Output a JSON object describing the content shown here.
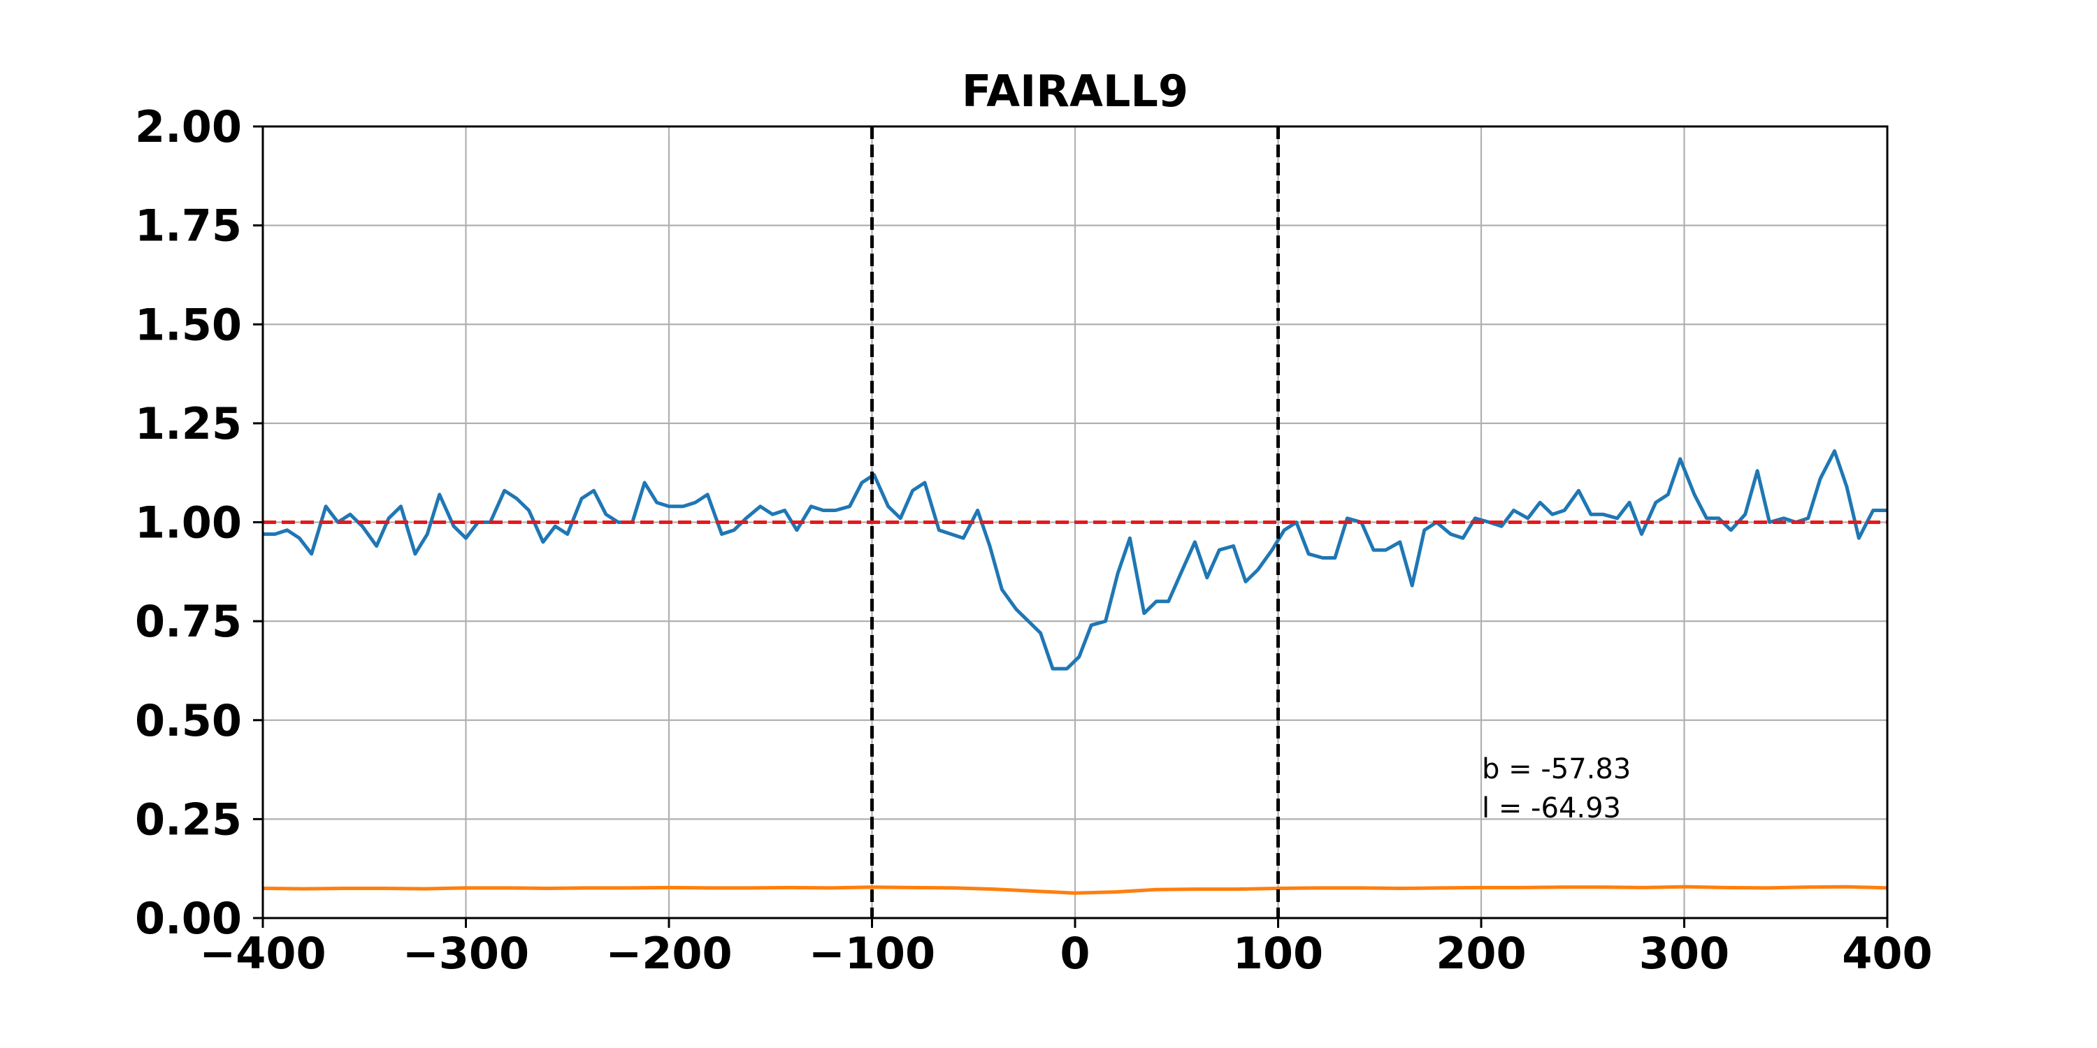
{
  "chart_data": {
    "type": "line",
    "title": "FAIRALL9",
    "xlabel": "",
    "ylabel": "",
    "xlim": [
      -400,
      400
    ],
    "ylim": [
      0,
      2
    ],
    "x_ticks": [
      -400,
      -300,
      -200,
      -100,
      0,
      100,
      200,
      300,
      400
    ],
    "x_tick_labels": [
      "−400",
      "−300",
      "−200",
      "−100",
      "0",
      "100",
      "200",
      "300",
      "400"
    ],
    "y_ticks": [
      0,
      0.25,
      0.5,
      0.75,
      1.0,
      1.25,
      1.5,
      1.75,
      2.0
    ],
    "y_tick_labels": [
      "0.00",
      "0.25",
      "0.50",
      "0.75",
      "1.00",
      "1.25",
      "1.50",
      "1.75",
      "2.00"
    ],
    "grid": true,
    "reference_lines": [
      {
        "orientation": "horizontal",
        "value": 1.0,
        "color": "#e41a1c",
        "style": "dashed"
      },
      {
        "orientation": "vertical",
        "value": -100,
        "color": "#000000",
        "style": "dashed"
      },
      {
        "orientation": "vertical",
        "value": 100,
        "color": "#000000",
        "style": "dashed"
      }
    ],
    "annotations": [
      "b = -57.83",
      "l = -64.93"
    ],
    "series": [
      {
        "color": "#1f77b4",
        "x": [
          -400,
          -394,
          -388,
          -382,
          -376,
          -369,
          -363,
          -357,
          -351,
          -344,
          -338,
          -332,
          -325,
          -319,
          -313,
          -306,
          -300,
          -294,
          -288,
          -281,
          -275,
          -269,
          -262,
          -256,
          -250,
          -243,
          -237,
          -231,
          -225,
          -218,
          -212,
          -206,
          -200,
          -193,
          -187,
          -181,
          -174,
          -168,
          -162,
          -155,
          -149,
          -143,
          -137,
          -130,
          -124,
          -118,
          -111,
          -105,
          -99,
          -92,
          -86,
          -80,
          -74,
          -67,
          -61,
          -55,
          -48,
          -42,
          -36,
          -29,
          -23,
          -17,
          -11,
          -4,
          2,
          8,
          15,
          21,
          27,
          34,
          40,
          46,
          52,
          59,
          65,
          71,
          78,
          84,
          90,
          97,
          103,
          109,
          115,
          122,
          128,
          134,
          141,
          147,
          153,
          160,
          166,
          172,
          178,
          185,
          191,
          197,
          204,
          210,
          216,
          223,
          229,
          235,
          241,
          248,
          254,
          260,
          267,
          273,
          279,
          286,
          292,
          298,
          305,
          311,
          317,
          323,
          330,
          336,
          342,
          349,
          355,
          361,
          367,
          374,
          380,
          386,
          393,
          400
        ],
        "y": [
          0.97,
          0.97,
          0.98,
          0.96,
          0.92,
          1.04,
          1.0,
          1.02,
          0.99,
          0.94,
          1.01,
          1.04,
          0.92,
          0.97,
          1.07,
          0.99,
          0.96,
          1.0,
          1.0,
          1.08,
          1.06,
          1.03,
          0.95,
          0.99,
          0.97,
          1.06,
          1.08,
          1.02,
          1.0,
          1.0,
          1.1,
          1.05,
          1.04,
          1.04,
          1.05,
          1.07,
          0.97,
          0.98,
          1.01,
          1.04,
          1.02,
          1.03,
          0.98,
          1.04,
          1.03,
          1.03,
          1.04,
          1.1,
          1.12,
          1.04,
          1.01,
          1.08,
          1.1,
          0.98,
          0.97,
          0.96,
          1.03,
          0.94,
          0.83,
          0.78,
          0.75,
          0.72,
          0.63,
          0.63,
          0.66,
          0.74,
          0.75,
          0.87,
          0.96,
          0.77,
          0.8,
          0.8,
          0.87,
          0.95,
          0.86,
          0.93,
          0.94,
          0.85,
          0.88,
          0.93,
          0.98,
          1.0,
          0.92,
          0.91,
          0.91,
          1.01,
          1.0,
          0.93,
          0.93,
          0.95,
          0.84,
          0.98,
          1.0,
          0.97,
          0.96,
          1.01,
          1.0,
          0.99,
          1.03,
          1.01,
          1.05,
          1.02,
          1.03,
          1.08,
          1.02,
          1.02,
          1.01,
          1.05,
          0.97,
          1.05,
          1.07,
          1.16,
          1.07,
          1.01,
          1.01,
          0.98,
          1.02,
          1.13,
          1.0,
          1.01,
          1.0,
          1.01,
          1.11,
          1.18,
          1.09,
          0.96,
          1.03,
          1.03
        ]
      },
      {
        "color": "#ff7f0e",
        "x": [
          -400,
          -380,
          -360,
          -340,
          -320,
          -300,
          -280,
          -260,
          -240,
          -220,
          -200,
          -180,
          -160,
          -140,
          -120,
          -100,
          -80,
          -60,
          -40,
          -20,
          0,
          20,
          40,
          60,
          80,
          100,
          120,
          140,
          160,
          180,
          200,
          220,
          240,
          260,
          280,
          300,
          320,
          340,
          360,
          380,
          400
        ],
        "y": [
          0.075,
          0.074,
          0.075,
          0.075,
          0.074,
          0.076,
          0.076,
          0.075,
          0.076,
          0.076,
          0.077,
          0.076,
          0.076,
          0.077,
          0.076,
          0.078,
          0.077,
          0.076,
          0.073,
          0.068,
          0.063,
          0.066,
          0.072,
          0.073,
          0.073,
          0.075,
          0.076,
          0.076,
          0.075,
          0.076,
          0.077,
          0.077,
          0.078,
          0.078,
          0.077,
          0.079,
          0.077,
          0.076,
          0.078,
          0.079,
          0.076
        ]
      }
    ]
  }
}
